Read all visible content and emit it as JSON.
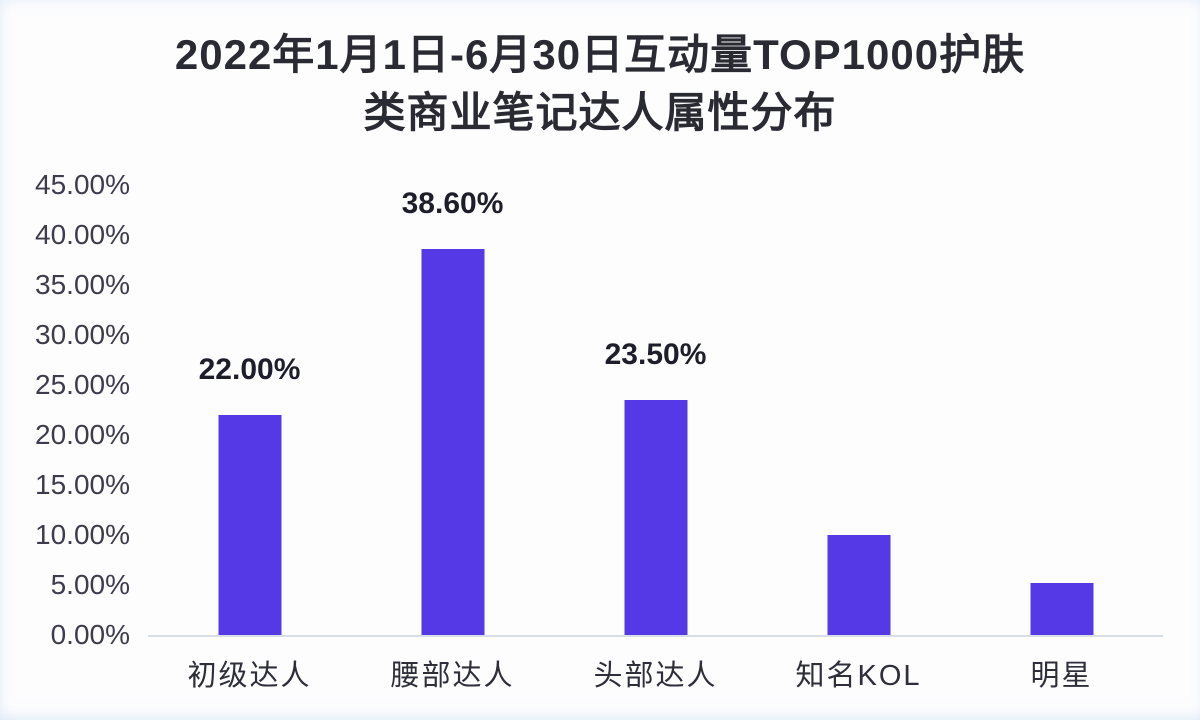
{
  "chart_data": {
    "type": "bar",
    "title": "2022年1月1日-6月30日互动量TOP1000护肤类商业笔记达人属性分布",
    "title_lines": [
      "2022年1月1日-6月30日互动量TOP1000护肤",
      "类商业笔记达人属性分布"
    ],
    "categories": [
      "初级达人",
      "腰部达人",
      "头部达人",
      "知名KOL",
      "明星"
    ],
    "values": [
      22.0,
      38.6,
      23.5,
      10.0,
      5.2
    ],
    "data_labels": [
      "22.00%",
      "38.60%",
      "23.50%",
      "",
      ""
    ],
    "ytick_labels": [
      "45.00%",
      "40.00%",
      "35.00%",
      "30.00%",
      "25.00%",
      "20.00%",
      "15.00%",
      "10.00%",
      "5.00%",
      "0.00%"
    ],
    "ytick_values": [
      45,
      40,
      35,
      30,
      25,
      20,
      15,
      10,
      5,
      0
    ],
    "ylim": [
      0,
      45
    ],
    "xlabel": "",
    "ylabel": "",
    "grid": "off",
    "legend": "none",
    "colors": {
      "bar": "#5639e6",
      "axis_line": "#d9dee5",
      "title_text": "#2a2a33",
      "tick_text": "#3e3c4b",
      "data_label_text": "#1e1e2b"
    }
  }
}
